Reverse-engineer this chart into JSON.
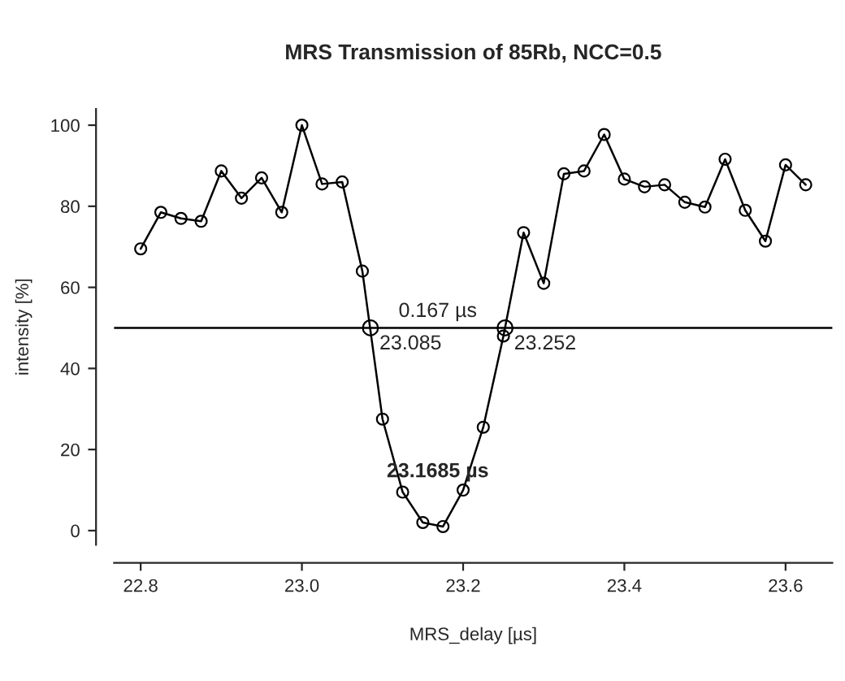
{
  "chart_data": {
    "type": "line",
    "title": "MRS Transmission of 85Rb, NCC=0.5",
    "xlabel": "MRS_delay [µs]",
    "ylabel": "intensity [%]",
    "x": [
      22.8,
      22.825,
      22.85,
      22.875,
      22.9,
      22.925,
      22.95,
      22.975,
      23.0,
      23.025,
      23.05,
      23.075,
      23.1,
      23.125,
      23.15,
      23.175,
      23.2,
      23.225,
      23.25,
      23.275,
      23.3,
      23.325,
      23.35,
      23.375,
      23.4,
      23.425,
      23.45,
      23.475,
      23.5,
      23.525,
      23.55,
      23.575,
      23.6,
      23.625
    ],
    "series": [
      {
        "color": "#000000",
        "marker": "circle",
        "line_style": "solid",
        "values": [
          69.5,
          78.5,
          77,
          76.3,
          88.7,
          82,
          87,
          78.5,
          100,
          85.5,
          86,
          64,
          27.5,
          9.5,
          2,
          1,
          10,
          25.5,
          48,
          73.5,
          61,
          88,
          88.7,
          97.7,
          86.7,
          84.8,
          85.3,
          81,
          79.8,
          91.6,
          79,
          71.4,
          90.2,
          85.3
        ]
      },
      {
        "type": "scatter",
        "color": "#000000",
        "marker": "circle",
        "x": [
          23.085,
          23.252
        ],
        "values": [
          50,
          50
        ]
      }
    ],
    "ref_lines": [
      {
        "axis": "y",
        "value": 50,
        "color": "#000000",
        "line_style": "solid"
      }
    ],
    "annotations": [
      {
        "text": "0.167 µs",
        "x": 23.1685,
        "y": 50
      },
      {
        "text": "23.085",
        "x": 23.085,
        "y": 50
      },
      {
        "text": "23.252",
        "x": 23.252,
        "y": 50
      },
      {
        "text": "23.1685 µs",
        "x": 23.1685,
        "y": 1
      }
    ],
    "xlim": [
      22.767,
      23.658
    ],
    "ylim": [
      -3.5,
      104
    ],
    "xticks": [
      22.8,
      {
        "value": 23.0,
        "label": "23.0"
      },
      23.2,
      23.4,
      23.6
    ],
    "yticks": [
      0,
      20,
      40,
      60,
      80,
      100
    ],
    "grid": false,
    "legend": false
  }
}
